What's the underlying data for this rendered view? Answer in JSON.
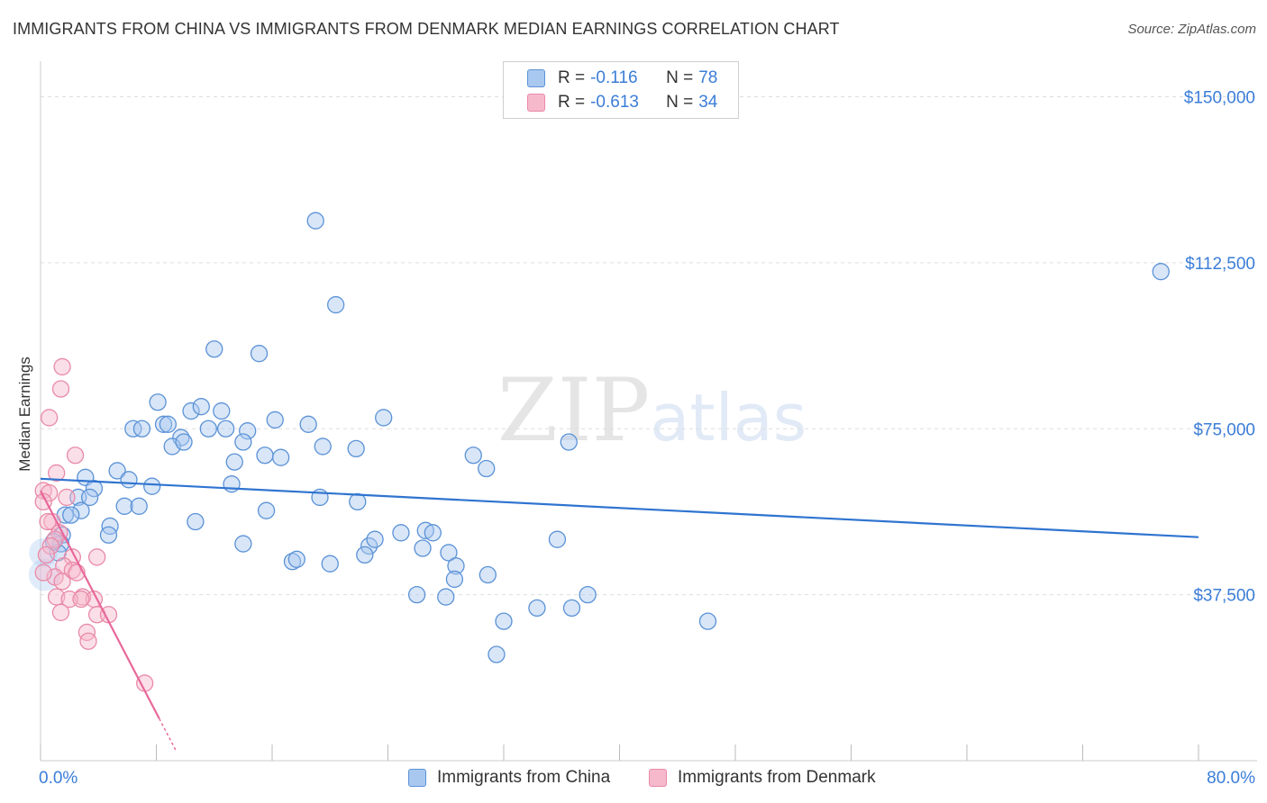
{
  "header": {
    "title": "IMMIGRANTS FROM CHINA VS IMMIGRANTS FROM DENMARK MEDIAN EARNINGS CORRELATION CHART",
    "source": "Source: ZipAtlas.com"
  },
  "watermark": {
    "zip": "ZIP",
    "atlas": "atlas"
  },
  "legend": {
    "china": {
      "r_label": "R =",
      "r_value": "-0.116",
      "n_label": "N =",
      "n_value": "78"
    },
    "denmark": {
      "r_label": "R =",
      "r_value": "-0.613",
      "n_label": "N =",
      "n_value": "34"
    }
  },
  "colors": {
    "china_fill": "#a9c8f0",
    "china_stroke": "#5b92d6",
    "china_line": "#2f74d0",
    "denmark_fill": "#f6b9cb",
    "denmark_stroke": "#e98aa8",
    "denmark_line": "#e8689a",
    "tick_text": "#3b7dd8",
    "grid": "#dddddd"
  },
  "chart_data": {
    "type": "scatter",
    "title": "IMMIGRANTS FROM CHINA VS IMMIGRANTS FROM DENMARK MEDIAN EARNINGS CORRELATION CHART",
    "xlabel": "",
    "ylabel": "Median Earnings",
    "xlim": [
      0,
      80
    ],
    "ylim": [
      0,
      156000
    ],
    "x_tick_labels": [
      "0.0%",
      "80.0%"
    ],
    "y_ticks": [
      {
        "value": 37500,
        "label": "$37,500"
      },
      {
        "value": 75000,
        "label": "$75,000"
      },
      {
        "value": 112500,
        "label": "$112,500"
      },
      {
        "value": 150000,
        "label": "$150,000"
      }
    ],
    "series": [
      {
        "name": "Immigrants from China",
        "trend": {
          "x": [
            0,
            80
          ],
          "y": [
            63700,
            50500
          ]
        },
        "points": [
          [
            19.0,
            122000
          ],
          [
            20.4,
            103000
          ],
          [
            12.0,
            93000
          ],
          [
            15.1,
            92000
          ],
          [
            77.4,
            110500
          ],
          [
            8.1,
            81000
          ],
          [
            10.4,
            79000
          ],
          [
            11.1,
            80000
          ],
          [
            12.5,
            79000
          ],
          [
            6.4,
            75000
          ],
          [
            7.0,
            75000
          ],
          [
            8.5,
            76000
          ],
          [
            8.8,
            76000
          ],
          [
            9.7,
            73000
          ],
          [
            9.1,
            71000
          ],
          [
            9.9,
            72000
          ],
          [
            11.6,
            75000
          ],
          [
            12.8,
            75000
          ],
          [
            14.3,
            74500
          ],
          [
            16.2,
            77000
          ],
          [
            18.5,
            76000
          ],
          [
            23.7,
            77500
          ],
          [
            14.0,
            72000
          ],
          [
            19.5,
            71000
          ],
          [
            21.8,
            70500
          ],
          [
            36.5,
            72000
          ],
          [
            13.4,
            67500
          ],
          [
            15.5,
            69000
          ],
          [
            16.6,
            68500
          ],
          [
            29.9,
            69000
          ],
          [
            30.8,
            66000
          ],
          [
            5.3,
            65500
          ],
          [
            3.1,
            64000
          ],
          [
            6.1,
            63500
          ],
          [
            7.7,
            62000
          ],
          [
            13.2,
            62500
          ],
          [
            3.7,
            61500
          ],
          [
            2.6,
            59500
          ],
          [
            3.4,
            59500
          ],
          [
            19.3,
            59500
          ],
          [
            21.9,
            58500
          ],
          [
            5.8,
            57500
          ],
          [
            6.8,
            57500
          ],
          [
            2.8,
            56500
          ],
          [
            1.7,
            55500
          ],
          [
            2.1,
            55500
          ],
          [
            15.6,
            56500
          ],
          [
            4.8,
            53000
          ],
          [
            10.7,
            54000
          ],
          [
            1.5,
            51000
          ],
          [
            4.7,
            51000
          ],
          [
            24.9,
            51500
          ],
          [
            26.6,
            52000
          ],
          [
            27.1,
            51500
          ],
          [
            35.7,
            50000
          ],
          [
            1.4,
            49000
          ],
          [
            14.0,
            49000
          ],
          [
            22.7,
            48500
          ],
          [
            23.1,
            50000
          ],
          [
            26.4,
            48000
          ],
          [
            28.2,
            47000
          ],
          [
            22.4,
            46500
          ],
          [
            17.4,
            45000
          ],
          [
            17.7,
            45500
          ],
          [
            20.0,
            44500
          ],
          [
            28.7,
            44000
          ],
          [
            28.6,
            41000
          ],
          [
            30.9,
            42000
          ],
          [
            1.2,
            47000
          ],
          [
            0.9,
            49500
          ],
          [
            26.0,
            37500
          ],
          [
            28.0,
            37000
          ],
          [
            37.8,
            37500
          ],
          [
            34.3,
            34500
          ],
          [
            36.7,
            34500
          ],
          [
            32.0,
            31500
          ],
          [
            46.1,
            31500
          ],
          [
            31.5,
            24000
          ]
        ]
      },
      {
        "name": "Immigrants from Denmark",
        "trend": {
          "x": [
            0,
            8.2
          ],
          "y": [
            61000,
            9500
          ]
        },
        "trend_dashed": {
          "x": [
            8.2,
            9.4
          ],
          "y": [
            9500,
            2000
          ]
        },
        "points": [
          [
            1.5,
            89000
          ],
          [
            1.4,
            84000
          ],
          [
            0.6,
            77500
          ],
          [
            2.4,
            69000
          ],
          [
            1.1,
            65000
          ],
          [
            0.2,
            61000
          ],
          [
            0.6,
            60500
          ],
          [
            0.2,
            58500
          ],
          [
            1.8,
            59500
          ],
          [
            0.8,
            54000
          ],
          [
            0.5,
            54000
          ],
          [
            1.3,
            51500
          ],
          [
            1.0,
            50000
          ],
          [
            0.7,
            48500
          ],
          [
            0.4,
            46500
          ],
          [
            2.2,
            46000
          ],
          [
            3.9,
            46000
          ],
          [
            1.6,
            44000
          ],
          [
            2.2,
            43000
          ],
          [
            2.5,
            42500
          ],
          [
            1.0,
            41500
          ],
          [
            1.5,
            40500
          ],
          [
            2.9,
            37000
          ],
          [
            1.1,
            37000
          ],
          [
            2.0,
            36500
          ],
          [
            3.7,
            36500
          ],
          [
            2.8,
            36500
          ],
          [
            1.4,
            33500
          ],
          [
            3.9,
            33000
          ],
          [
            4.7,
            33000
          ],
          [
            3.2,
            29000
          ],
          [
            3.3,
            27000
          ],
          [
            7.2,
            17500
          ],
          [
            0.2,
            42500
          ]
        ]
      }
    ]
  }
}
